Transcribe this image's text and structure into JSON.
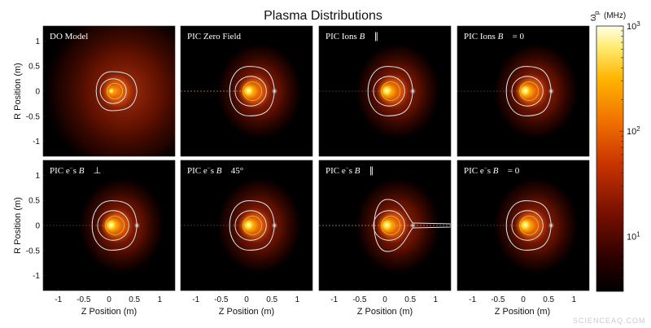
{
  "figure": {
    "title": "Plasma Distributions",
    "colorbar_label": "ω_p (MHz)",
    "colorbar_label_symbol": "ω",
    "colorbar_label_sub": "p",
    "colorbar_label_unit": "(MHz)",
    "colorbar_ticks": [
      {
        "base": "10",
        "exp": "3",
        "value": 1000
      },
      {
        "base": "10",
        "exp": "2",
        "value": 100
      },
      {
        "base": "10",
        "exp": "1",
        "value": 10
      }
    ],
    "colorbar_range": [
      3,
      1000
    ],
    "colorbar_scale": "log",
    "colormap": [
      "#000000",
      "#3b0000",
      "#8a1200",
      "#d24a00",
      "#ff9e00",
      "#ffee66",
      "#ffffe8"
    ],
    "ylabel": "R Position (m)",
    "xlabel": "Z Position (m)",
    "yticks": [
      "1",
      "0.5",
      "0",
      "-0.5",
      "-1"
    ],
    "xticks": [
      "-1",
      "-0.5",
      "0",
      "0.5",
      "1"
    ],
    "watermark": "SCIENCEAQ.COM"
  },
  "chart_data": [
    {
      "type": "heatmap",
      "title": "DO Model",
      "xlim": [
        -1.3,
        1.3
      ],
      "ylim": [
        -1.3,
        1.3
      ],
      "xlabel": "",
      "ylabel": "R Position (m)"
    },
    {
      "type": "heatmap",
      "title": "PIC Zero Field",
      "xlim": [
        -1.3,
        1.3
      ],
      "ylim": [
        -1.3,
        1.3
      ],
      "xlabel": "",
      "ylabel": ""
    },
    {
      "type": "heatmap",
      "title": "PIC Ions B∥",
      "xlim": [
        -1.3,
        1.3
      ],
      "ylim": [
        -1.3,
        1.3
      ],
      "xlabel": "",
      "ylabel": ""
    },
    {
      "type": "heatmap",
      "title": "PIC Ions B=0",
      "xlim": [
        -1.3,
        1.3
      ],
      "ylim": [
        -1.3,
        1.3
      ],
      "xlabel": "",
      "ylabel": ""
    },
    {
      "type": "heatmap",
      "title": "PIC e⁻s B⊥",
      "xlim": [
        -1.3,
        1.3
      ],
      "ylim": [
        -1.3,
        1.3
      ],
      "xlabel": "Z Position (m)",
      "ylabel": "R Position (m)"
    },
    {
      "type": "heatmap",
      "title": "PIC e⁻s B 45°",
      "xlim": [
        -1.3,
        1.3
      ],
      "ylim": [
        -1.3,
        1.3
      ],
      "xlabel": "Z Position (m)",
      "ylabel": ""
    },
    {
      "type": "heatmap",
      "title": "PIC e⁻s B∥",
      "xlim": [
        -1.3,
        1.3
      ],
      "ylim": [
        -1.3,
        1.3
      ],
      "xlabel": "Z Position (m)",
      "ylabel": ""
    },
    {
      "type": "heatmap",
      "title": "PIC e⁻s B=0",
      "xlim": [
        -1.3,
        1.3
      ],
      "ylim": [
        -1.3,
        1.3
      ],
      "xlabel": "Z Position (m)",
      "ylabel": ""
    }
  ],
  "panels": [
    {
      "parts": [
        "DO Model"
      ]
    },
    {
      "parts": [
        "PIC Zero Field"
      ]
    },
    {
      "parts": [
        "PIC Ions ",
        "{B}",
        " ∥"
      ]
    },
    {
      "parts": [
        "PIC Ions ",
        "{B}",
        " = 0"
      ]
    },
    {
      "parts": [
        "PIC e",
        "^−",
        "s ",
        "{B}",
        " ⊥"
      ]
    },
    {
      "parts": [
        "PIC e",
        "^−",
        "s ",
        "{B}",
        " 45°"
      ]
    },
    {
      "parts": [
        "PIC e",
        "^−",
        "s ",
        "{B}",
        " ∥"
      ]
    },
    {
      "parts": [
        "PIC e",
        "^−",
        "s ",
        "{B}",
        " = 0"
      ]
    }
  ]
}
